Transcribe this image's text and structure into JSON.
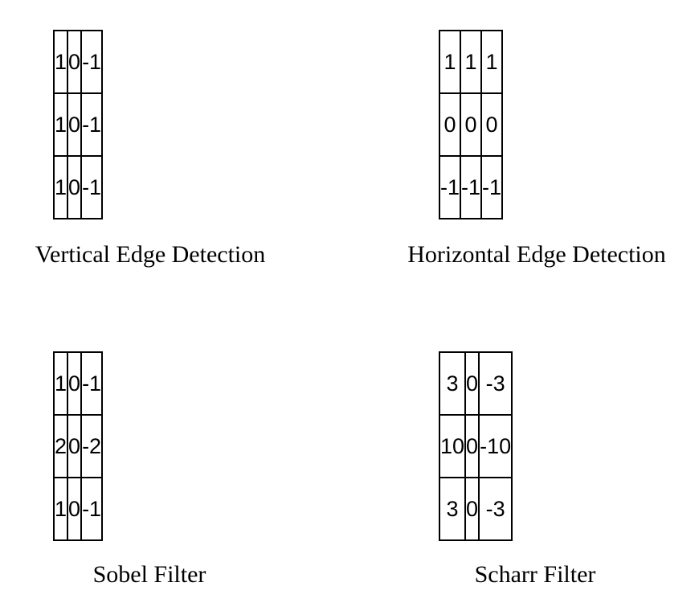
{
  "kernels": [
    {
      "caption": "Vertical Edge Detection",
      "rows": [
        [
          "1",
          "0",
          "-1"
        ],
        [
          "1",
          "0",
          "-1"
        ],
        [
          "1",
          "0",
          "-1"
        ]
      ]
    },
    {
      "caption": "Horizontal Edge Detection",
      "rows": [
        [
          "1",
          "1",
          "1"
        ],
        [
          "0",
          "0",
          "0"
        ],
        [
          "-1",
          "-1",
          "-1"
        ]
      ]
    },
    {
      "caption": "Sobel Filter",
      "rows": [
        [
          "1",
          "0",
          "-1"
        ],
        [
          "2",
          "0",
          "-2"
        ],
        [
          "1",
          "0",
          "-1"
        ]
      ]
    },
    {
      "caption": "Scharr Filter",
      "rows": [
        [
          "3",
          "0",
          "-3"
        ],
        [
          "10",
          "0",
          "-10"
        ],
        [
          "3",
          "0",
          "-3"
        ]
      ]
    }
  ]
}
